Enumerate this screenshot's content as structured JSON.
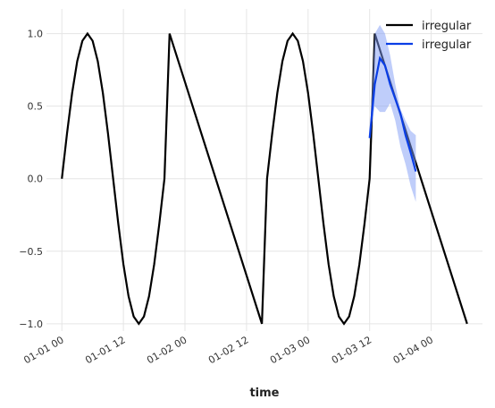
{
  "chart_data": {
    "type": "line",
    "xlabel": "time",
    "series": [
      {
        "name": "irregular",
        "color": "#000000",
        "x": [
          "01-01 00",
          "01-01 01",
          "01-01 02",
          "01-01 03",
          "01-01 04",
          "01-01 05",
          "01-01 06",
          "01-01 07",
          "01-01 08",
          "01-01 09",
          "01-01 10",
          "01-01 11",
          "01-01 12",
          "01-01 13",
          "01-01 14",
          "01-01 15",
          "01-01 16",
          "01-01 17",
          "01-01 18",
          "01-01 19",
          "01-01 20",
          "01-01 21",
          "01-02 15",
          "01-02 16",
          "01-02 17",
          "01-02 18",
          "01-02 19",
          "01-02 20",
          "01-02 21",
          "01-02 22",
          "01-02 23",
          "01-03 00",
          "01-03 01",
          "01-03 02",
          "01-03 03",
          "01-03 04",
          "01-03 05",
          "01-03 06",
          "01-03 07",
          "01-03 08",
          "01-03 09",
          "01-03 10",
          "01-03 11",
          "01-03 12",
          "01-03 13",
          "01-04 07"
        ],
        "values": [
          0,
          0.31,
          0.59,
          0.81,
          0.95,
          1,
          0.95,
          0.81,
          0.59,
          0.31,
          0,
          -0.31,
          -0.59,
          -0.81,
          -0.95,
          -1,
          -0.95,
          -0.81,
          -0.59,
          -0.31,
          0,
          1,
          -1,
          0,
          0.31,
          0.59,
          0.81,
          0.95,
          1,
          0.95,
          0.81,
          0.59,
          0.31,
          0,
          -0.31,
          -0.59,
          -0.81,
          -0.95,
          -1,
          -0.95,
          -0.81,
          -0.59,
          -0.31,
          0,
          1,
          -1
        ]
      },
      {
        "name": "irregular",
        "color": "#0a3ee6",
        "band_color": "#7f9cf5",
        "x": [
          "01-03 12",
          "01-03 13",
          "01-03 14",
          "01-03 15",
          "01-03 16",
          "01-03 17",
          "01-03 18",
          "01-03 19",
          "01-03 20",
          "01-03 21"
        ],
        "values": [
          0.28,
          0.65,
          0.83,
          0.78,
          0.65,
          0.55,
          0.45,
          0.3,
          0.18,
          0.05
        ],
        "upper": [
          0.28,
          1.0,
          1.06,
          1.0,
          0.85,
          0.65,
          0.48,
          0.4,
          0.33,
          0.3
        ],
        "lower": [
          0.28,
          0.5,
          0.46,
          0.46,
          0.52,
          0.4,
          0.22,
          0.1,
          -0.05,
          -0.16
        ]
      }
    ],
    "xlim": [
      "12-31 21",
      "01-04 10"
    ],
    "xticks": [
      "01-01 00",
      "01-01 12",
      "01-02 00",
      "01-02 12",
      "01-03 00",
      "01-03 12",
      "01-04 00"
    ],
    "ylim": [
      -1.05,
      1.17
    ],
    "yticks": [
      {
        "value": -1,
        "label": "−1.0"
      },
      {
        "value": -0.5,
        "label": "−0.5"
      },
      {
        "value": 0,
        "label": "0.0"
      },
      {
        "value": 0.5,
        "label": "0.5"
      },
      {
        "value": 1,
        "label": "1.0"
      }
    ],
    "grid": true,
    "legend": "upper right"
  }
}
